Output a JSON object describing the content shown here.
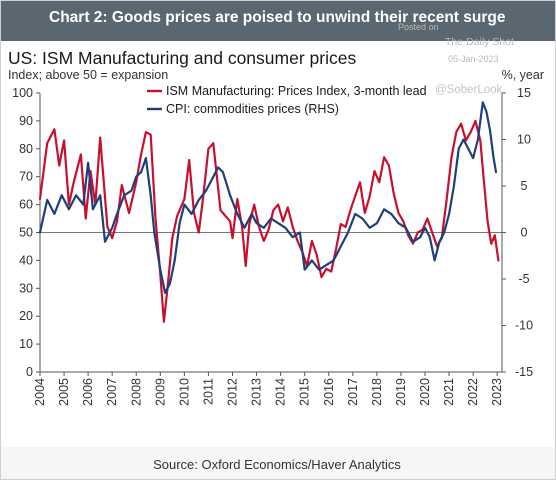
{
  "header": {
    "title": "Chart 2: Goods prices are poised to unwind their recent surge"
  },
  "watermark": {
    "posted_on": "Posted on",
    "source": "The Daily Shot",
    "date": "05-Jan-2023",
    "handle": "@SoberLook"
  },
  "source_note": "Source: Oxford Economics/Haver Analytics",
  "colors": {
    "header_bg": "#5b6770",
    "series_ism": "#c8102e",
    "series_cpi": "#1f3f7a",
    "zero_line": "#777777"
  },
  "chart_data": {
    "type": "line",
    "title": "US: ISM Manufacturing and consumer prices",
    "ylabel": "Index; above 50 = expansion",
    "y2label": "%, year",
    "ylim": [
      0,
      100
    ],
    "y2lim": [
      -15,
      15
    ],
    "yticks": [
      0,
      10,
      20,
      30,
      40,
      50,
      60,
      70,
      80,
      90,
      100
    ],
    "y2ticks": [
      -15,
      -10,
      -5,
      0,
      5,
      10,
      15
    ],
    "xlim": [
      2004,
      2023.2
    ],
    "xticks": [
      "2004",
      "2005",
      "2006",
      "2007",
      "2008",
      "2009",
      "2010",
      "2011",
      "2012",
      "2013",
      "2014",
      "2015",
      "2016",
      "2017",
      "2018",
      "2019",
      "2020",
      "2021",
      "2022",
      "2023"
    ],
    "grid": false,
    "legend": "top-center",
    "series": [
      {
        "name": "ISM Manufacturing: Prices Index, 3-month lead",
        "axis": "left",
        "x": [
          2004.0,
          2004.3,
          2004.6,
          2004.8,
          2005.0,
          2005.2,
          2005.4,
          2005.7,
          2005.9,
          2006.1,
          2006.3,
          2006.5,
          2006.8,
          2007.0,
          2007.2,
          2007.4,
          2007.7,
          2008.0,
          2008.2,
          2008.4,
          2008.6,
          2008.8,
          2009.0,
          2009.15,
          2009.3,
          2009.5,
          2009.7,
          2010.0,
          2010.2,
          2010.4,
          2010.6,
          2010.8,
          2011.0,
          2011.2,
          2011.35,
          2011.5,
          2011.7,
          2011.9,
          2012.0,
          2012.2,
          2012.4,
          2012.55,
          2012.7,
          2012.9,
          2013.1,
          2013.3,
          2013.5,
          2013.7,
          2013.9,
          2014.1,
          2014.3,
          2014.5,
          2014.7,
          2014.9,
          2015.1,
          2015.3,
          2015.5,
          2015.7,
          2015.9,
          2016.1,
          2016.3,
          2016.5,
          2016.7,
          2016.9,
          2017.1,
          2017.3,
          2017.5,
          2017.7,
          2017.9,
          2018.1,
          2018.3,
          2018.5,
          2018.7,
          2018.9,
          2019.1,
          2019.3,
          2019.5,
          2019.7,
          2019.9,
          2020.1,
          2020.3,
          2020.5,
          2020.7,
          2020.9,
          2021.1,
          2021.3,
          2021.5,
          2021.7,
          2021.9,
          2022.1,
          2022.3,
          2022.45,
          2022.6,
          2022.75,
          2022.9,
          2023.05
        ],
        "values": [
          62,
          82,
          87,
          74,
          83,
          60,
          68,
          78,
          55,
          72,
          60,
          84,
          52,
          48,
          54,
          67,
          57,
          68,
          78,
          86,
          85,
          55,
          35,
          18,
          30,
          48,
          56,
          62,
          76,
          57,
          50,
          64,
          80,
          82,
          70,
          58,
          56,
          54,
          48,
          62,
          52,
          38,
          53,
          60,
          52,
          47,
          51,
          58,
          60,
          54,
          59,
          52,
          47,
          43,
          38,
          47,
          42,
          34,
          37,
          36,
          44,
          53,
          52,
          58,
          63,
          68,
          57,
          63,
          72,
          68,
          77,
          74,
          64,
          57,
          54,
          49,
          46,
          50,
          51,
          55,
          50,
          45,
          48,
          62,
          77,
          86,
          89,
          83,
          86,
          90,
          83,
          68,
          54,
          46,
          49,
          40
        ]
      },
      {
        "name": "CPI: commodities prices (RHS)",
        "axis": "right",
        "x": [
          2004.0,
          2004.3,
          2004.6,
          2004.9,
          2005.2,
          2005.5,
          2005.8,
          2006.0,
          2006.2,
          2006.5,
          2006.7,
          2007.0,
          2007.2,
          2007.5,
          2007.8,
          2008.0,
          2008.2,
          2008.4,
          2008.6,
          2008.75,
          2009.0,
          2009.2,
          2009.4,
          2009.6,
          2009.8,
          2010.0,
          2010.3,
          2010.6,
          2010.9,
          2011.2,
          2011.4,
          2011.6,
          2011.9,
          2012.2,
          2012.5,
          2012.8,
          2013.0,
          2013.3,
          2013.6,
          2013.9,
          2014.2,
          2014.5,
          2014.8,
          2015.0,
          2015.3,
          2015.6,
          2015.9,
          2016.2,
          2016.5,
          2016.8,
          2017.1,
          2017.4,
          2017.7,
          2018.0,
          2018.3,
          2018.6,
          2018.9,
          2019.2,
          2019.5,
          2019.8,
          2020.0,
          2020.2,
          2020.4,
          2020.6,
          2020.8,
          2021.0,
          2021.2,
          2021.4,
          2021.6,
          2021.8,
          2022.0,
          2022.2,
          2022.4,
          2022.55,
          2022.7,
          2022.85,
          2022.95
        ],
        "values": [
          0,
          3.5,
          2,
          4,
          2.5,
          4,
          3,
          7.5,
          2.5,
          4,
          -1,
          0.5,
          2,
          4,
          4.5,
          6,
          6.5,
          8,
          4,
          0,
          -4,
          -6.5,
          -5.5,
          -3,
          1,
          3,
          2,
          3.5,
          4.5,
          6,
          7,
          6.5,
          4,
          2,
          0.5,
          2,
          1,
          0.5,
          1.5,
          1,
          0.5,
          -0.5,
          0,
          -4,
          -3,
          -4,
          -3.5,
          -3,
          -1.5,
          0,
          2,
          1.5,
          0.5,
          1,
          2.5,
          2,
          1,
          0.5,
          -1,
          -0.5,
          0.5,
          -0.5,
          -3,
          -1,
          0,
          2,
          5,
          9,
          10,
          9,
          8,
          10,
          14,
          13,
          11,
          8,
          6.5
        ]
      }
    ]
  }
}
